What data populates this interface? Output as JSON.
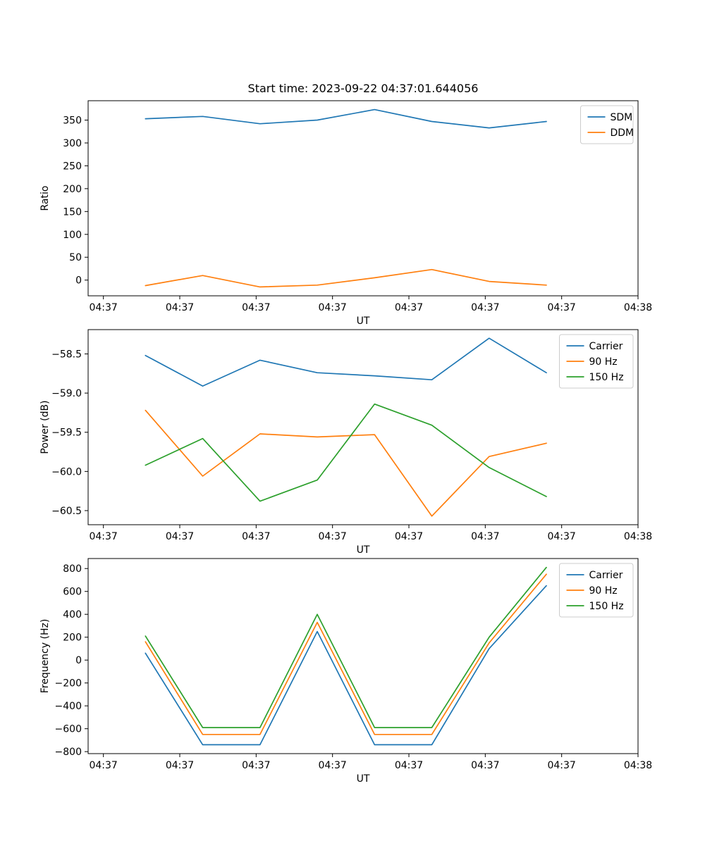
{
  "figure": {
    "background": "#ffffff",
    "frame_color": "#000000",
    "legend_border_color": "#cccccc"
  },
  "chart_data": [
    {
      "type": "line",
      "title": "Start time: 2023-09-22 04:37:01.644056",
      "xlabel": "UT",
      "ylabel": "Ratio",
      "grid": false,
      "legend_position": "upper right",
      "xlim": [
        -0.2,
        7.0
      ],
      "ylim": [
        -34.4,
        392.4
      ],
      "x": [
        0.55,
        1.3,
        2.05,
        2.8,
        3.55,
        4.3,
        5.05,
        5.8
      ],
      "xtick_values": [
        0,
        1,
        2,
        3,
        4,
        5,
        6,
        7
      ],
      "xtick_labels": [
        "04:37",
        "04:37",
        "04:37",
        "04:37",
        "04:37",
        "04:37",
        "04:37",
        "04:38"
      ],
      "ytick_values": [
        0,
        50,
        100,
        150,
        200,
        250,
        300,
        350
      ],
      "ytick_labels": [
        "0",
        "50",
        "100",
        "150",
        "200",
        "250",
        "300",
        "350"
      ],
      "series": [
        {
          "name": "SDM",
          "color": "#1f77b4",
          "values": [
            353,
            358,
            342,
            350,
            373,
            347,
            333,
            347
          ]
        },
        {
          "name": "DDM",
          "color": "#ff7f0e",
          "values": [
            -12,
            10,
            -15,
            -11,
            5,
            23,
            -3,
            -11
          ]
        }
      ]
    },
    {
      "type": "line",
      "title": "",
      "xlabel": "UT",
      "ylabel": "Power (dB)",
      "grid": false,
      "legend_position": "upper right",
      "xlim": [
        -0.2,
        7.0
      ],
      "ylim": [
        -60.68,
        -58.19
      ],
      "x": [
        0.55,
        1.3,
        2.05,
        2.8,
        3.55,
        4.3,
        5.05,
        5.8
      ],
      "xtick_values": [
        0,
        1,
        2,
        3,
        4,
        5,
        6,
        7
      ],
      "xtick_labels": [
        "04:37",
        "04:37",
        "04:37",
        "04:37",
        "04:37",
        "04:37",
        "04:37",
        "04:38"
      ],
      "ytick_values": [
        -60.5,
        -60.0,
        -59.5,
        -59.0,
        -58.5
      ],
      "ytick_labels": [
        "−60.5",
        "−60.0",
        "−59.5",
        "−59.0",
        "−58.5"
      ],
      "series": [
        {
          "name": "Carrier",
          "color": "#1f77b4",
          "values": [
            -58.52,
            -58.91,
            -58.58,
            -58.74,
            -58.78,
            -58.83,
            -58.3,
            -58.74
          ]
        },
        {
          "name": "90 Hz",
          "color": "#ff7f0e",
          "values": [
            -59.22,
            -60.06,
            -59.52,
            -59.56,
            -59.53,
            -60.57,
            -59.81,
            -59.64
          ]
        },
        {
          "name": "150 Hz",
          "color": "#2ca02c",
          "values": [
            -59.92,
            -59.58,
            -60.38,
            -60.11,
            -59.14,
            -59.41,
            -59.95,
            -60.32
          ]
        }
      ]
    },
    {
      "type": "line",
      "title": "",
      "xlabel": "UT",
      "ylabel": "Frequency (Hz)",
      "grid": false,
      "legend_position": "upper right",
      "xlim": [
        -0.2,
        7.0
      ],
      "ylim": [
        -817.5,
        887.5
      ],
      "x": [
        0.55,
        1.3,
        2.05,
        2.8,
        3.55,
        4.3,
        5.05,
        5.8
      ],
      "xtick_values": [
        0,
        1,
        2,
        3,
        4,
        5,
        6,
        7
      ],
      "xtick_labels": [
        "04:37",
        "04:37",
        "04:37",
        "04:37",
        "04:37",
        "04:37",
        "04:37",
        "04:38"
      ],
      "ytick_values": [
        -800,
        -600,
        -400,
        -200,
        0,
        200,
        400,
        600,
        800
      ],
      "ytick_labels": [
        "−800",
        "−600",
        "−400",
        "−200",
        "0",
        "200",
        "400",
        "600",
        "800"
      ],
      "series": [
        {
          "name": "Carrier",
          "color": "#1f77b4",
          "values": [
            60,
            -740,
            -740,
            250,
            -740,
            -740,
            100,
            650
          ]
        },
        {
          "name": "90 Hz",
          "color": "#ff7f0e",
          "values": [
            160,
            -650,
            -650,
            330,
            -650,
            -650,
            150,
            750
          ]
        },
        {
          "name": "150 Hz",
          "color": "#2ca02c",
          "values": [
            210,
            -590,
            -590,
            400,
            -590,
            -590,
            200,
            810
          ]
        }
      ]
    }
  ]
}
